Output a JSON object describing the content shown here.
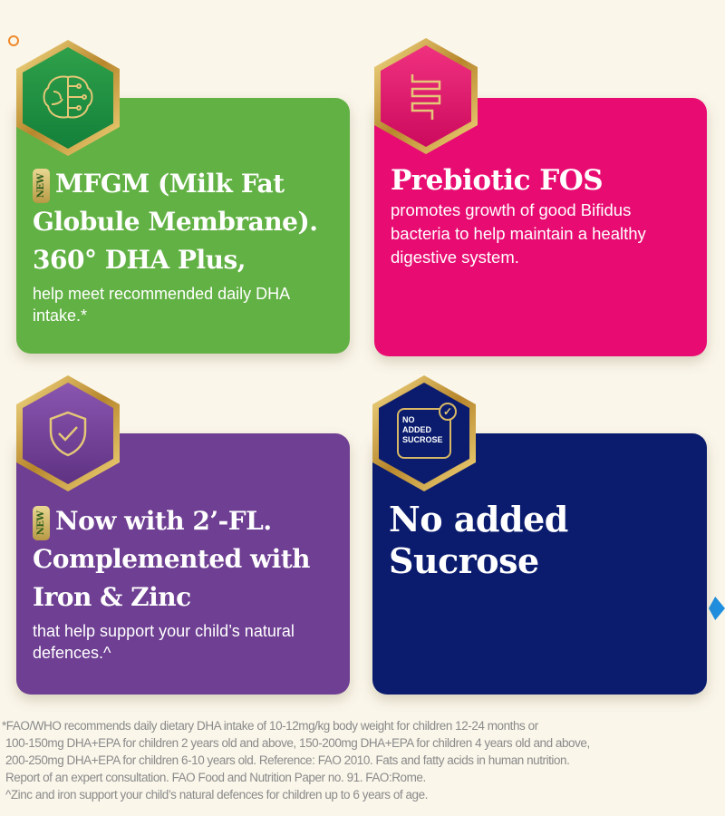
{
  "cards": [
    {
      "new_badge": "NEW",
      "title": "MFGM (Milk Fat Globule Membrane). 360° DHA Plus,",
      "body": "help meet recommended daily DHA intake.*",
      "color": "#62b144",
      "icon": "brain-circuit-icon"
    },
    {
      "title": "Prebiotic FOS",
      "body": "promotes growth of good Bifidus bacteria to help maintain a healthy digestive system.",
      "color": "#e80c72",
      "icon": "intestine-icon"
    },
    {
      "new_badge": "NEW",
      "title": "Now with 2’-FL. Complemented with Iron & Zinc",
      "body": "that help support your child’s natural defences.^",
      "color": "#6e3f92",
      "icon": "shield-check-icon"
    },
    {
      "title": "No added Sucrose",
      "color": "#0b1c6e",
      "icon": "no-added-sucrose-icon",
      "icon_text": [
        "NO",
        "ADDED",
        "SUCROSE"
      ]
    }
  ],
  "footnotes": [
    "*FAO/WHO recommends daily dietary DHA intake of 10-12mg/kg body weight for children 12-24 months or",
    "100-150mg DHA+EPA for children 2 years old and above, 150-200mg DHA+EPA for children 4 years old and above,",
    "200-250mg DHA+EPA for children 6-10 years old. Reference: FAO 2010. Fats and fatty acids in human nutrition.",
    "Report of an expert consultation. FAO Food and Nutrition Paper no. 91. FAO:Rome.",
    "^Zinc and iron support your child’s natural defences for children up to 6 years of age."
  ]
}
